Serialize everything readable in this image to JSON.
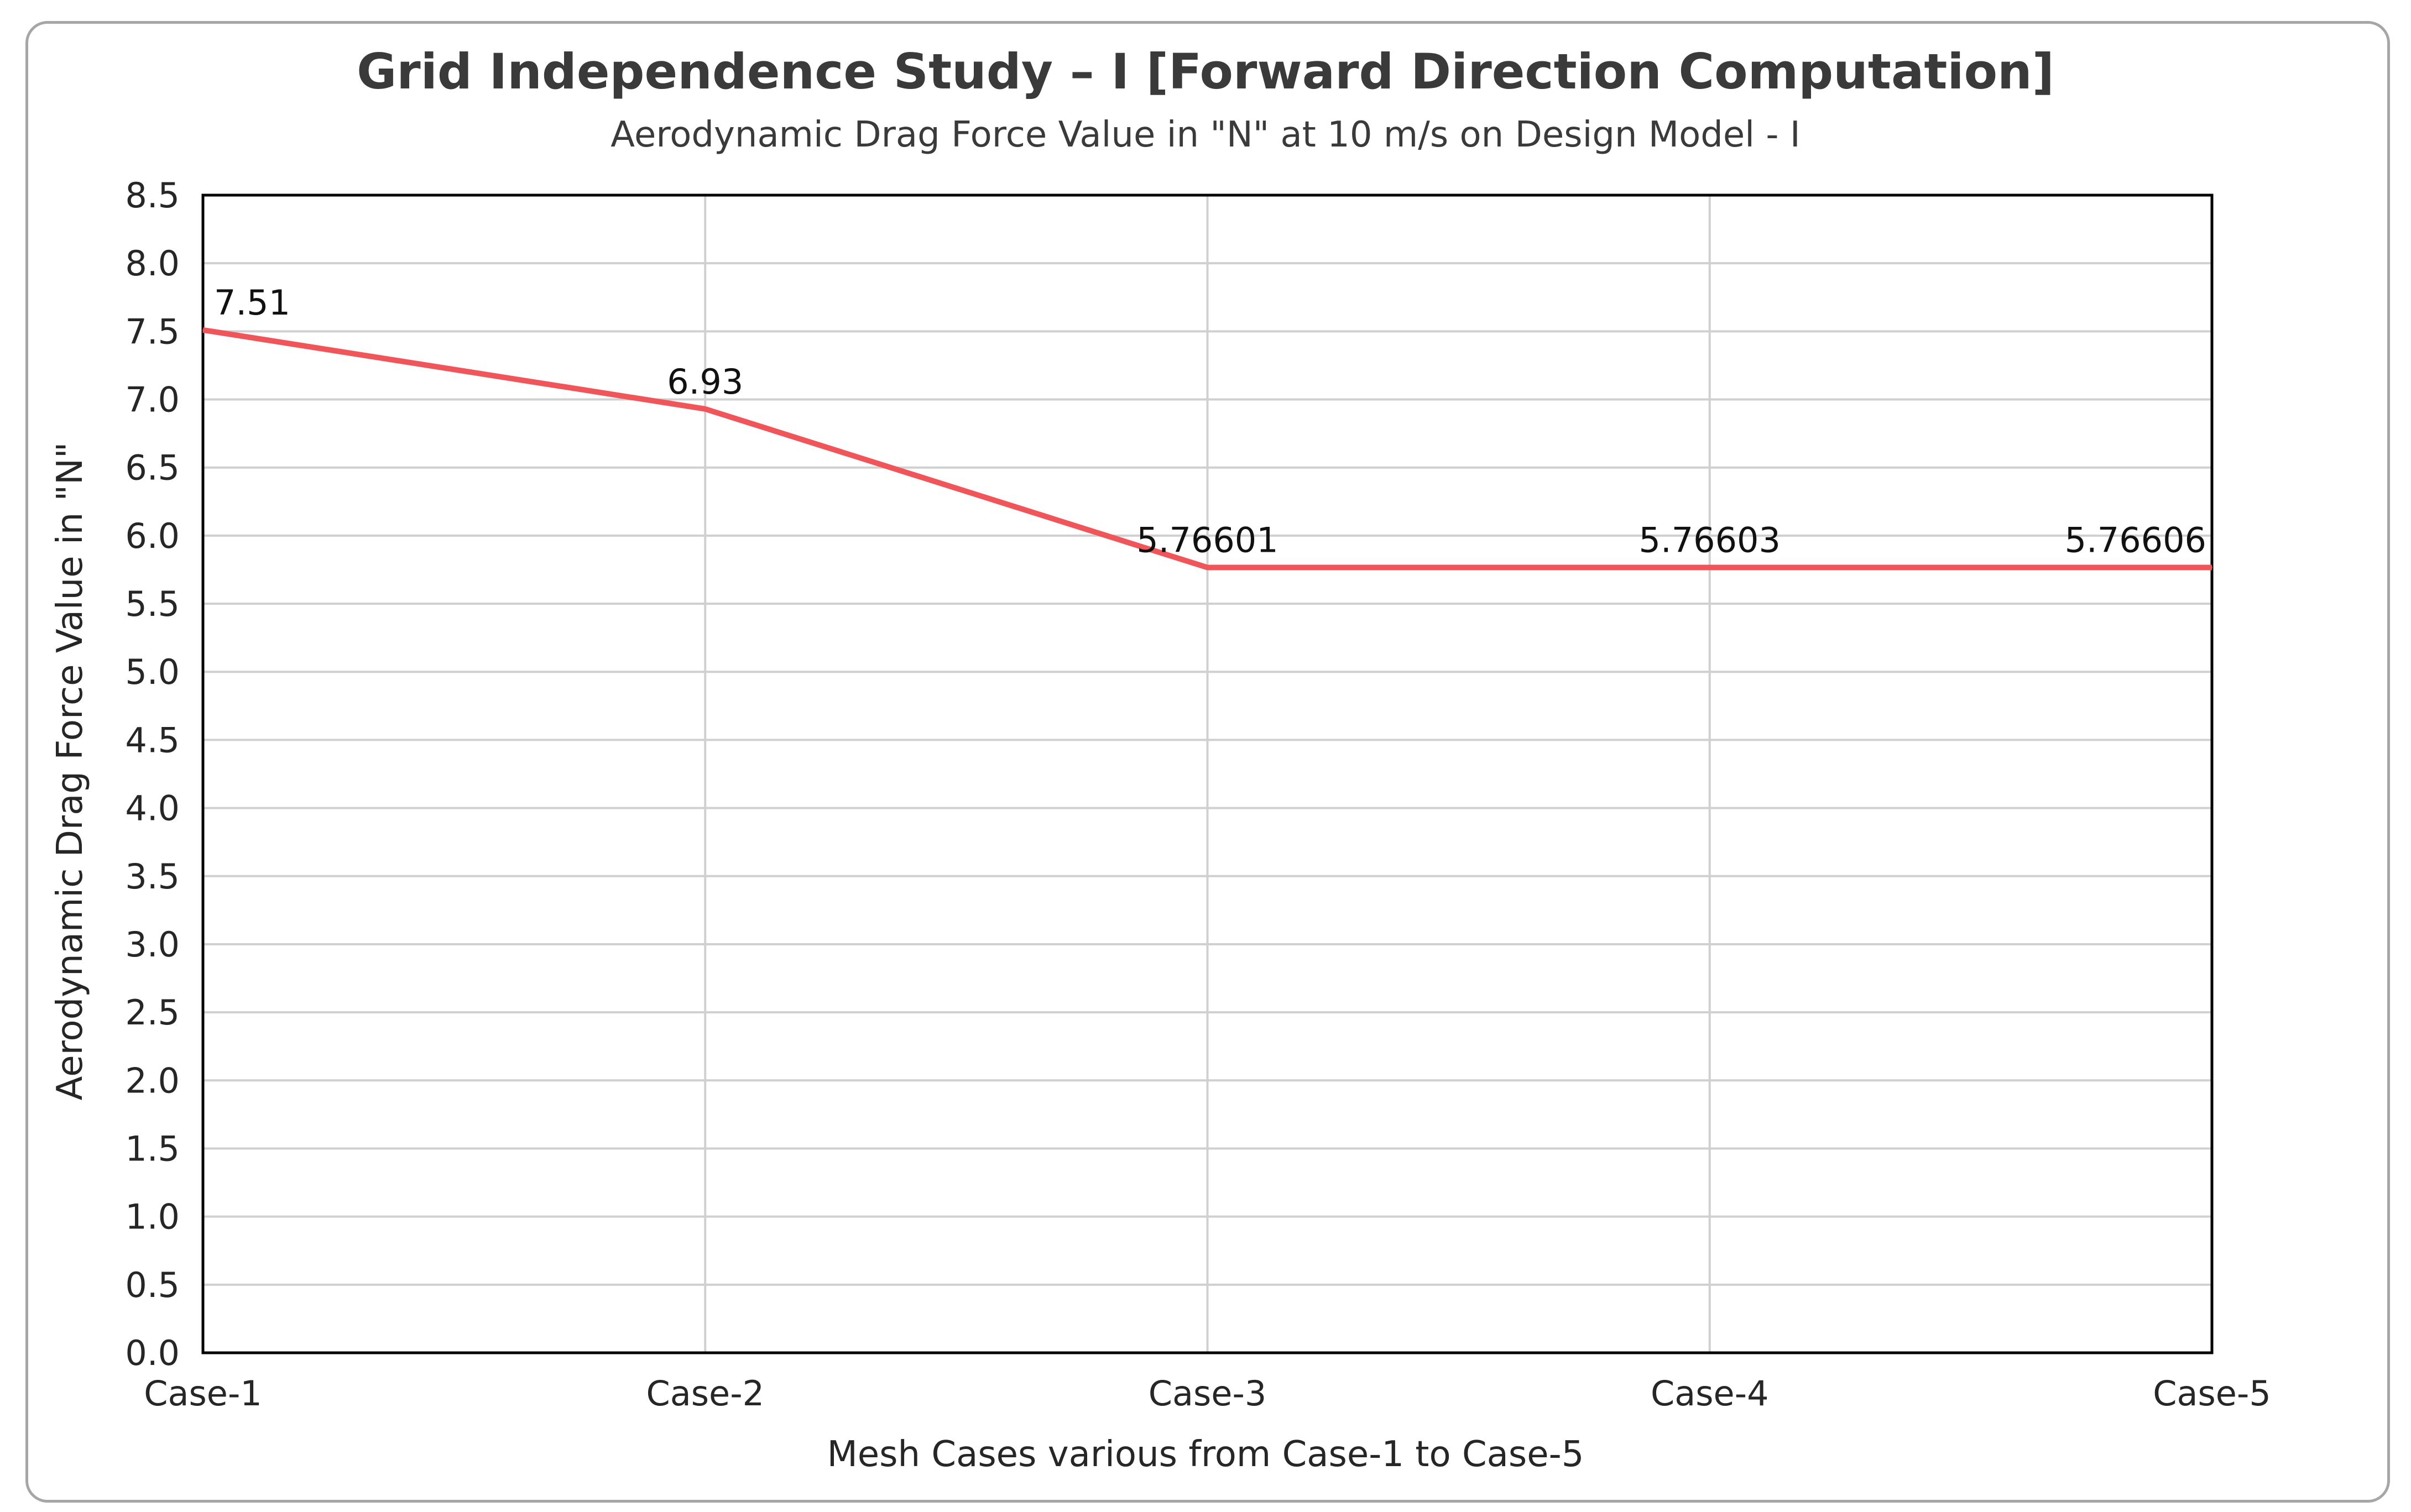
{
  "chart_data": {
    "type": "line",
    "title": "Grid Independence Study – I [Forward Direction Computation]",
    "subtitle": "Aerodynamic Drag Force Value in \"N\" at 10 m/s on Design Model - I",
    "xlabel": "Mesh Cases various from Case-1 to Case-5",
    "ylabel": "Aerodynamic Drag Force Value in \"N\"",
    "categories": [
      "Case-1",
      "Case-2",
      "Case-3",
      "Case-4",
      "Case-5"
    ],
    "series": [
      {
        "name": "Aerodynamic Drag Force",
        "values": [
          7.51,
          6.93,
          5.76601,
          5.76603,
          5.76606
        ],
        "labels": [
          "7.51",
          "6.93",
          "5.76601",
          "5.76603",
          "5.76606"
        ],
        "color": "#f0555a"
      }
    ],
    "ylim": [
      0,
      8.5
    ],
    "ystep": 0.5,
    "ytick_labels": [
      "0.0",
      "0.5",
      "1.0",
      "1.5",
      "2.0",
      "2.5",
      "3.0",
      "3.5",
      "4.0",
      "4.5",
      "5.0",
      "5.5",
      "6.0",
      "6.5",
      "7.0",
      "7.5",
      "8.0",
      "8.5"
    ],
    "grid": true,
    "legend": "none"
  }
}
